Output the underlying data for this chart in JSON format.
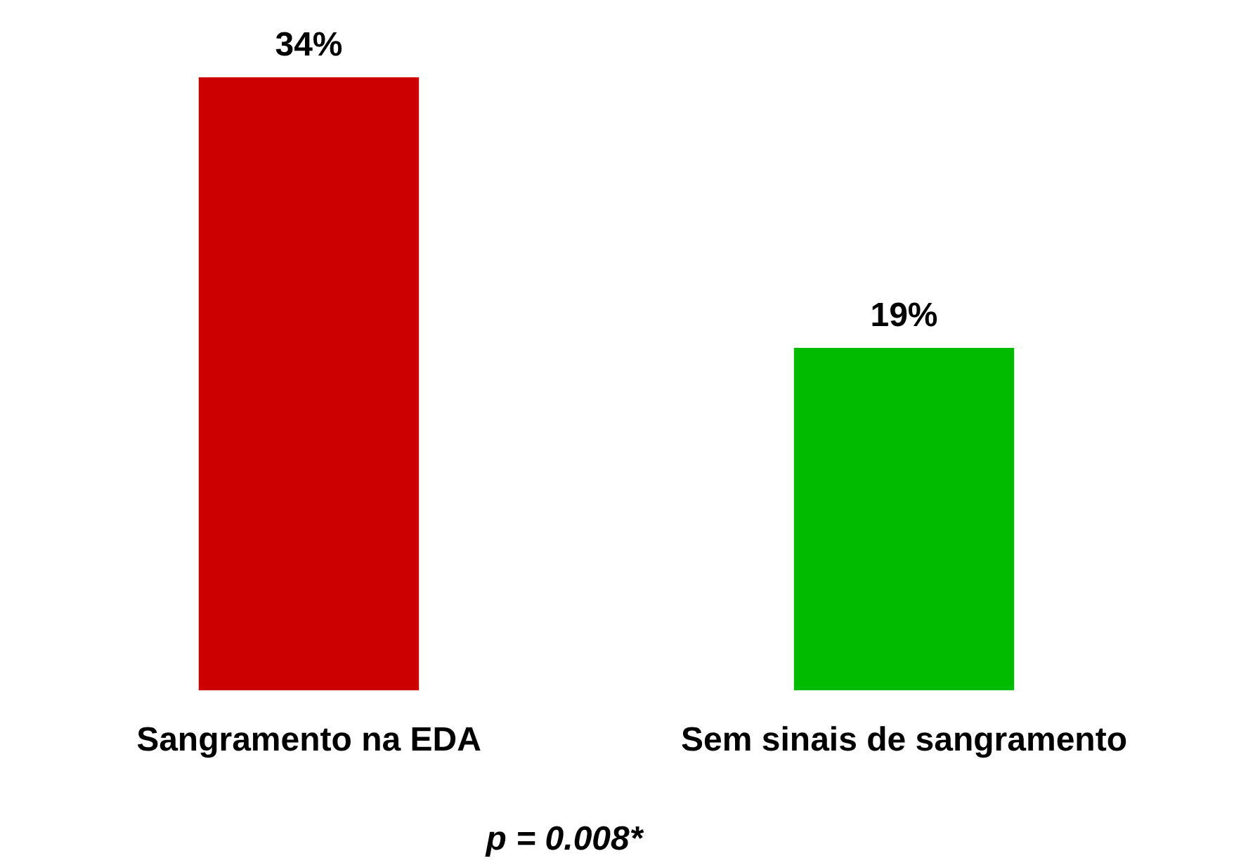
{
  "chart_data": {
    "type": "bar",
    "categories": [
      "Sangramento na EDA",
      "Sem sinais de sangramento"
    ],
    "values": [
      34,
      19
    ],
    "colors": [
      "#cc0000",
      "#00bb00"
    ],
    "value_labels": [
      "34%",
      "19%"
    ],
    "annotations": [
      "p = 0.008*"
    ],
    "legend": false,
    "grid": false
  }
}
